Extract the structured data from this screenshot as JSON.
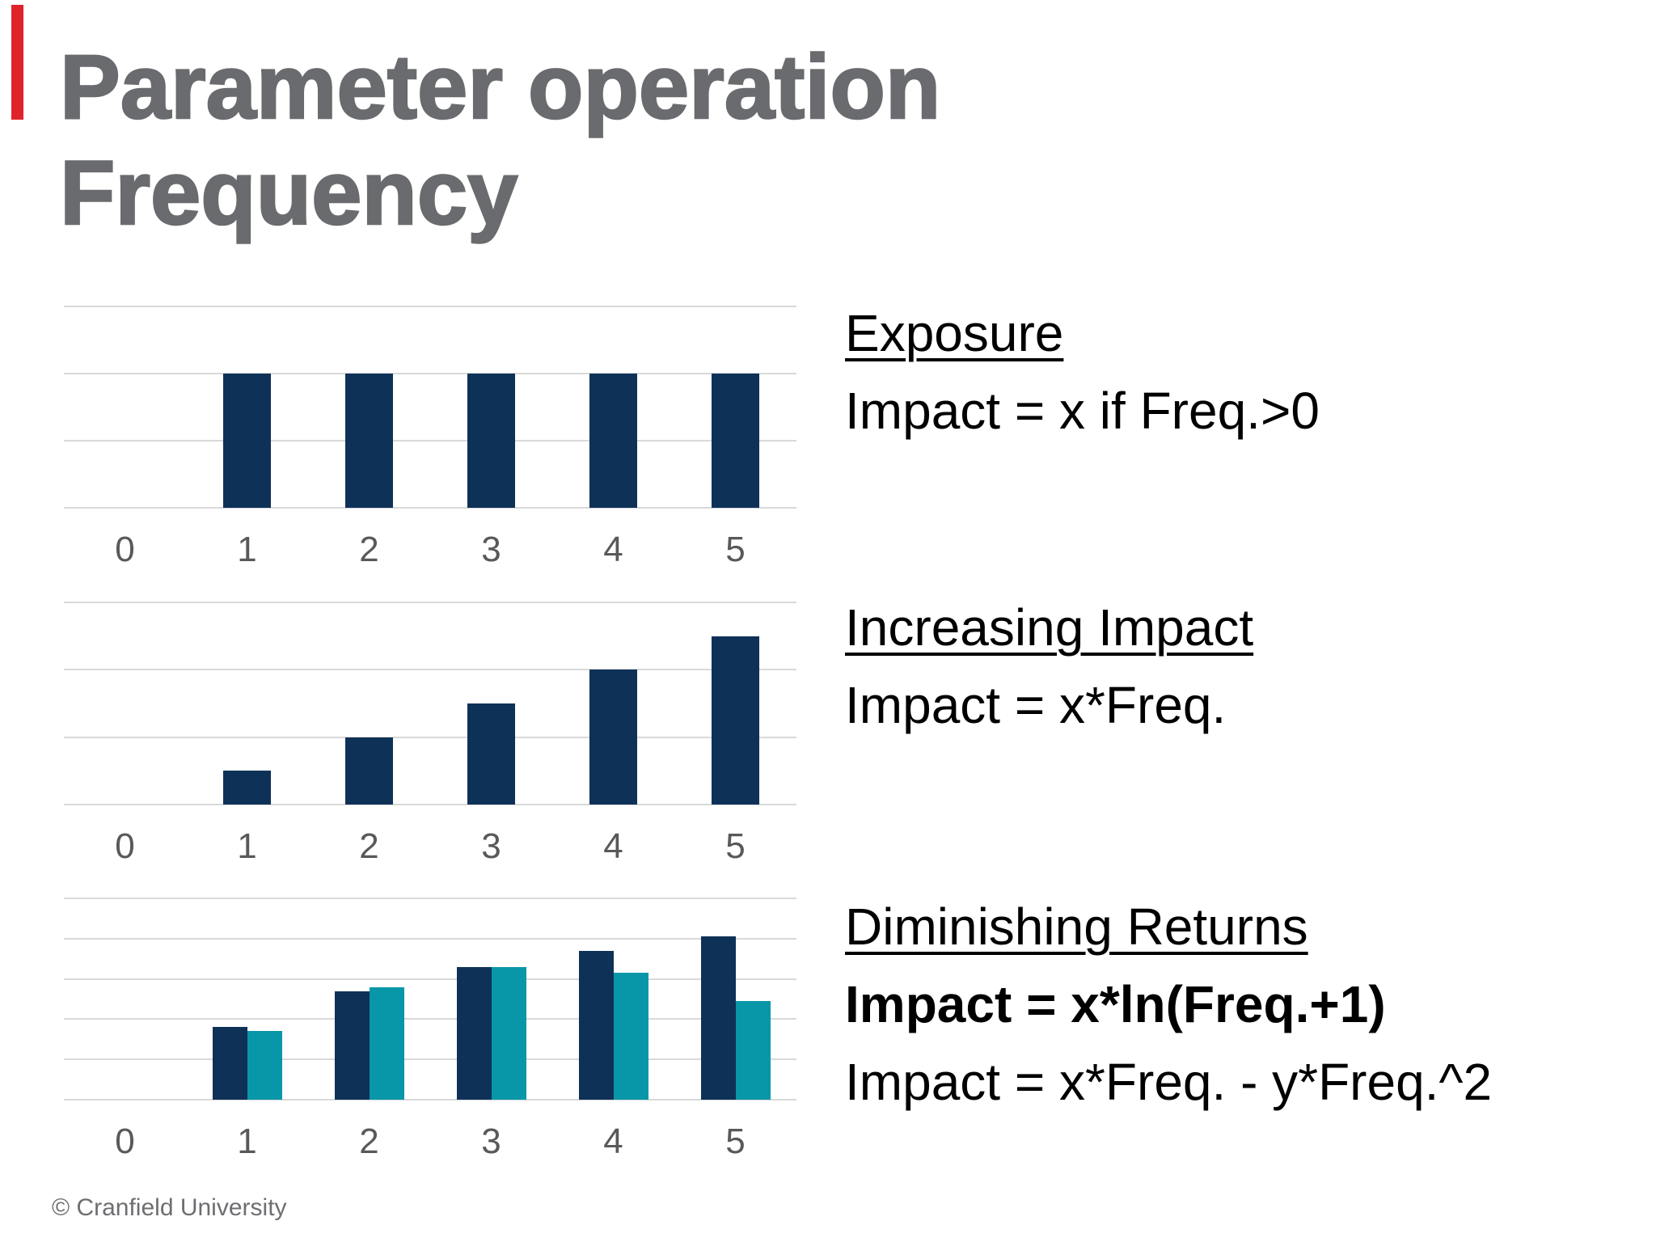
{
  "slide": {
    "title_line1": "Parameter operation",
    "title_line2": "Frequency",
    "footer": "© Cranfield University"
  },
  "colors": {
    "accent_red": "#e0232b",
    "title_gray": "#6a6b6e",
    "bar_navy": "#0e3158",
    "bar_teal": "#0897a8",
    "grid_gray": "#d9d9d9",
    "tick_gray": "#58595b",
    "text_black": "#000000"
  },
  "annotations": [
    {
      "heading": "Exposure",
      "lines": [
        {
          "text": "Impact = x if Freq.>0",
          "bold": false
        }
      ]
    },
    {
      "heading": "Increasing Impact",
      "lines": [
        {
          "text": "Impact = x*Freq.",
          "bold": false
        }
      ]
    },
    {
      "heading": "Diminishing Returns",
      "lines": [
        {
          "text": "Impact = x*ln(Freq.+1)",
          "bold": true
        },
        {
          "text": "Impact = x*Freq. - y*Freq.^2",
          "bold": false
        }
      ]
    }
  ],
  "chart_data": [
    {
      "type": "bar",
      "title": "Exposure",
      "categories": [
        "0",
        "1",
        "2",
        "3",
        "4",
        "5"
      ],
      "series": [
        {
          "name": "Impact = x if Freq.>0",
          "color": "#0e3158",
          "values": [
            0,
            2,
            2,
            2,
            2,
            2
          ]
        }
      ],
      "xlabel": "",
      "ylabel": "",
      "ylim": [
        0,
        3
      ],
      "gridline_step": 1,
      "grid": true,
      "legend": "none"
    },
    {
      "type": "bar",
      "title": "Increasing Impact",
      "categories": [
        "0",
        "1",
        "2",
        "3",
        "4",
        "5"
      ],
      "series": [
        {
          "name": "Impact = x*Freq.",
          "color": "#0e3158",
          "values": [
            0,
            0.5,
            1.0,
            1.5,
            2.0,
            2.5
          ]
        }
      ],
      "xlabel": "",
      "ylabel": "",
      "ylim": [
        0,
        3
      ],
      "gridline_step": 1,
      "grid": true,
      "legend": "none"
    },
    {
      "type": "bar",
      "title": "Diminishing Returns",
      "categories": [
        "0",
        "1",
        "2",
        "3",
        "4",
        "5"
      ],
      "series": [
        {
          "name": "Impact = x*ln(Freq.+1)",
          "color": "#0e3158",
          "values": [
            0,
            1.8,
            2.7,
            3.3,
            3.7,
            4.05
          ]
        },
        {
          "name": "Impact = x*Freq. - y*Freq.^2",
          "color": "#0897a8",
          "values": [
            0,
            1.7,
            2.8,
            3.3,
            3.15,
            2.45
          ]
        }
      ],
      "xlabel": "",
      "ylabel": "",
      "ylim": [
        0,
        5
      ],
      "gridline_step": 1,
      "grid": true,
      "legend": "none"
    }
  ]
}
